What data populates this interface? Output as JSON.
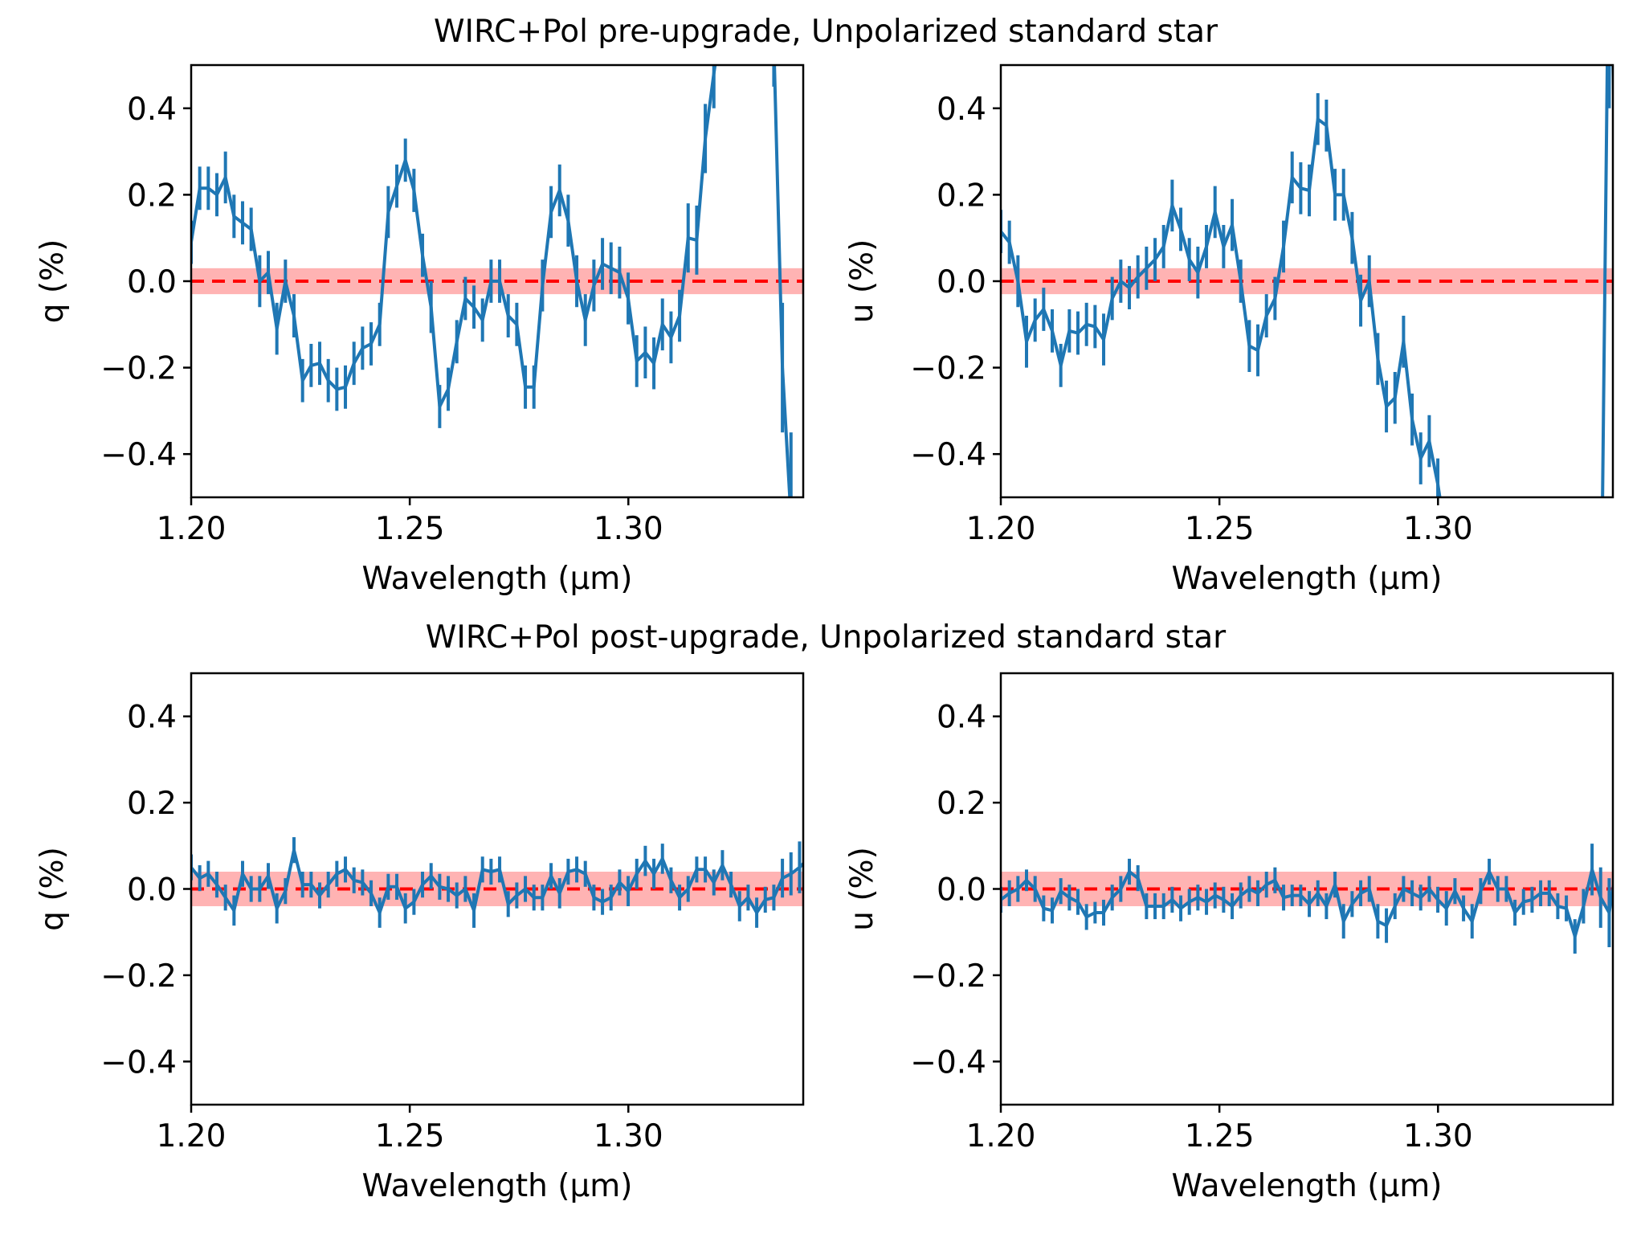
{
  "chart_data": [
    {
      "type": "line",
      "panel": "top-left",
      "group_title": "WIRC+Pol pre-upgrade, Unpolarized standard star",
      "xlabel": "Wavelength (μm)",
      "ylabel": "q (%)",
      "xlim": [
        1.2,
        1.34
      ],
      "ylim": [
        -0.5,
        0.5
      ],
      "xticks": [
        "1.20",
        "1.25",
        "1.30"
      ],
      "xtick_values": [
        1.2,
        1.25,
        1.3
      ],
      "yticks": [
        "−0.4",
        "−0.2",
        "0.0",
        "0.2",
        "0.4"
      ],
      "ytick_values": [
        -0.4,
        -0.2,
        0.0,
        0.2,
        0.4
      ],
      "reference_line": 0.0,
      "reference_band": 0.03,
      "x_start": 1.2,
      "x_step": 0.00196,
      "series": [
        {
          "name": "q",
          "color": "#1f77b4",
          "values": [
            0.09,
            0.215,
            0.215,
            0.2,
            0.24,
            0.15,
            0.135,
            0.12,
            0.0,
            0.02,
            -0.11,
            0.0,
            -0.08,
            -0.23,
            -0.195,
            -0.19,
            -0.23,
            -0.25,
            -0.245,
            -0.19,
            -0.155,
            -0.145,
            -0.1,
            0.16,
            0.22,
            0.28,
            0.21,
            0.06,
            -0.06,
            -0.29,
            -0.25,
            -0.14,
            -0.04,
            -0.06,
            -0.09,
            0.0,
            0.0,
            -0.08,
            -0.1,
            -0.245,
            -0.245,
            -0.01,
            0.16,
            0.21,
            0.14,
            0.0,
            -0.09,
            -0.01,
            0.04,
            0.03,
            0.02,
            -0.04,
            -0.185,
            -0.165,
            -0.19,
            -0.1,
            -0.13,
            -0.08,
            0.1,
            0.095,
            0.33,
            0.48,
            0.62,
            0.8,
            0.9,
            0.95,
            0.85,
            0.7,
            0.55,
            -0.2,
            -0.55,
            -0.75
          ],
          "errors": [
            0.05,
            0.05,
            0.05,
            0.05,
            0.06,
            0.05,
            0.05,
            0.05,
            0.06,
            0.05,
            0.06,
            0.05,
            0.05,
            0.05,
            0.05,
            0.05,
            0.05,
            0.05,
            0.05,
            0.05,
            0.05,
            0.05,
            0.05,
            0.06,
            0.05,
            0.05,
            0.05,
            0.05,
            0.06,
            0.05,
            0.05,
            0.05,
            0.05,
            0.05,
            0.05,
            0.05,
            0.05,
            0.05,
            0.05,
            0.05,
            0.05,
            0.06,
            0.06,
            0.06,
            0.06,
            0.06,
            0.06,
            0.06,
            0.06,
            0.06,
            0.06,
            0.06,
            0.06,
            0.06,
            0.06,
            0.06,
            0.06,
            0.06,
            0.08,
            0.08,
            0.08,
            0.08,
            0.1,
            0.1,
            0.1,
            0.1,
            0.1,
            0.1,
            0.1,
            0.15,
            0.2,
            0.2
          ]
        }
      ]
    },
    {
      "type": "line",
      "panel": "top-right",
      "group_title": "WIRC+Pol pre-upgrade, Unpolarized standard star",
      "xlabel": "Wavelength (μm)",
      "ylabel": "u (%)",
      "xlim": [
        1.2,
        1.34
      ],
      "ylim": [
        -0.5,
        0.5
      ],
      "xticks": [
        "1.20",
        "1.25",
        "1.30"
      ],
      "xtick_values": [
        1.2,
        1.25,
        1.3
      ],
      "yticks": [
        "−0.4",
        "−0.2",
        "0.0",
        "0.2",
        "0.4"
      ],
      "ytick_values": [
        -0.4,
        -0.2,
        0.0,
        0.2,
        0.4
      ],
      "reference_line": 0.0,
      "reference_band": 0.03,
      "x_start": 1.2,
      "x_step": 0.00196,
      "series": [
        {
          "name": "u",
          "color": "#1f77b4",
          "values": [
            0.115,
            0.09,
            0.0,
            -0.14,
            -0.09,
            -0.065,
            -0.115,
            -0.195,
            -0.115,
            -0.12,
            -0.1,
            -0.105,
            -0.135,
            -0.04,
            0.0,
            -0.015,
            0.01,
            0.03,
            0.05,
            0.08,
            0.175,
            0.12,
            0.05,
            0.02,
            0.08,
            0.16,
            0.08,
            0.13,
            0.0,
            -0.15,
            -0.16,
            -0.08,
            -0.04,
            0.08,
            0.24,
            0.215,
            0.21,
            0.375,
            0.36,
            0.2,
            0.2,
            0.1,
            -0.045,
            0.0,
            -0.18,
            -0.29,
            -0.27,
            -0.14,
            -0.32,
            -0.41,
            -0.37,
            -0.47,
            -0.6,
            -0.7,
            -0.75,
            -0.8,
            -0.8,
            -0.8,
            -0.8,
            -0.8,
            -0.8,
            -0.8,
            -0.8,
            -0.8,
            -0.8,
            -0.8,
            -0.8,
            -0.8,
            -0.8,
            -0.9,
            -0.9,
            0.9,
            0.0
          ],
          "errors": [
            0.05,
            0.05,
            0.06,
            0.06,
            0.05,
            0.05,
            0.05,
            0.05,
            0.05,
            0.05,
            0.05,
            0.05,
            0.06,
            0.05,
            0.05,
            0.05,
            0.05,
            0.05,
            0.05,
            0.05,
            0.06,
            0.05,
            0.05,
            0.06,
            0.05,
            0.06,
            0.05,
            0.06,
            0.05,
            0.06,
            0.06,
            0.05,
            0.05,
            0.06,
            0.06,
            0.06,
            0.06,
            0.06,
            0.06,
            0.06,
            0.06,
            0.06,
            0.06,
            0.06,
            0.06,
            0.06,
            0.06,
            0.06,
            0.06,
            0.06,
            0.06,
            0.06,
            0.06,
            0.06,
            0.06,
            0.06,
            0.06,
            0.06,
            0.06,
            0.06,
            0.06,
            0.06,
            0.06,
            0.06,
            0.06,
            0.06,
            0.06,
            0.06,
            0.06,
            0.3,
            0.3,
            0.5,
            0.5
          ],
          "hidden_indices": [
            53,
            54,
            55,
            56,
            57,
            58,
            59,
            60,
            61,
            62,
            63,
            64,
            65,
            66,
            67,
            68
          ]
        }
      ]
    },
    {
      "type": "line",
      "panel": "bottom-left",
      "group_title": "WIRC+Pol post-upgrade, Unpolarized standard star",
      "xlabel": "Wavelength (μm)",
      "ylabel": "q (%)",
      "xlim": [
        1.2,
        1.34
      ],
      "ylim": [
        -0.5,
        0.5
      ],
      "xticks": [
        "1.20",
        "1.25",
        "1.30"
      ],
      "xtick_values": [
        1.2,
        1.25,
        1.3
      ],
      "yticks": [
        "−0.4",
        "−0.2",
        "0.0",
        "0.2",
        "0.4"
      ],
      "ytick_values": [
        -0.4,
        -0.2,
        0.0,
        0.2,
        0.4
      ],
      "reference_line": 0.0,
      "reference_band": 0.04,
      "x_start": 1.2,
      "x_step": 0.00196,
      "series": [
        {
          "name": "q",
          "color": "#1f77b4",
          "values": [
            0.05,
            0.025,
            0.035,
            0.01,
            -0.02,
            -0.05,
            0.035,
            0.0,
            0.0,
            0.03,
            -0.045,
            -0.005,
            0.09,
            0.01,
            0.01,
            -0.015,
            0.01,
            0.035,
            0.045,
            0.02,
            0.015,
            -0.01,
            -0.055,
            0.005,
            0.005,
            -0.045,
            -0.03,
            0.01,
            0.03,
            0.005,
            0.0,
            -0.015,
            0.0,
            -0.05,
            0.045,
            0.04,
            0.045,
            -0.035,
            -0.015,
            0.0,
            -0.02,
            -0.02,
            0.03,
            -0.01,
            0.04,
            0.045,
            0.035,
            -0.02,
            -0.03,
            -0.02,
            0.015,
            -0.005,
            0.035,
            0.065,
            0.035,
            0.07,
            0.02,
            -0.02,
            0.0,
            0.045,
            0.045,
            0.015,
            0.055,
            0.01,
            -0.04,
            -0.02,
            -0.055,
            -0.025,
            -0.02,
            0.025,
            0.035,
            0.05,
            0.07,
            -0.03
          ],
          "errors": [
            0.03,
            0.03,
            0.03,
            0.03,
            0.03,
            0.035,
            0.03,
            0.03,
            0.03,
            0.03,
            0.035,
            0.03,
            0.03,
            0.03,
            0.03,
            0.03,
            0.03,
            0.03,
            0.03,
            0.03,
            0.03,
            0.03,
            0.035,
            0.03,
            0.03,
            0.035,
            0.03,
            0.03,
            0.03,
            0.03,
            0.03,
            0.03,
            0.03,
            0.04,
            0.03,
            0.03,
            0.03,
            0.03,
            0.03,
            0.03,
            0.03,
            0.03,
            0.03,
            0.035,
            0.03,
            0.03,
            0.03,
            0.03,
            0.03,
            0.03,
            0.03,
            0.035,
            0.035,
            0.035,
            0.035,
            0.035,
            0.03,
            0.03,
            0.03,
            0.03,
            0.03,
            0.03,
            0.035,
            0.03,
            0.035,
            0.03,
            0.035,
            0.03,
            0.03,
            0.045,
            0.05,
            0.06,
            0.07,
            0.07
          ]
        }
      ]
    },
    {
      "type": "line",
      "panel": "bottom-right",
      "group_title": "WIRC+Pol post-upgrade, Unpolarized standard star",
      "xlabel": "Wavelength (μm)",
      "ylabel": "u (%)",
      "xlim": [
        1.2,
        1.34
      ],
      "ylim": [
        -0.5,
        0.5
      ],
      "xticks": [
        "1.20",
        "1.25",
        "1.30"
      ],
      "xtick_values": [
        1.2,
        1.25,
        1.3
      ],
      "yticks": [
        "−0.4",
        "−0.2",
        "0.0",
        "0.2",
        "0.4"
      ],
      "ytick_values": [
        -0.4,
        -0.2,
        0.0,
        0.2,
        0.4
      ],
      "reference_line": 0.0,
      "reference_band": 0.04,
      "x_start": 1.2,
      "x_step": 0.00196,
      "series": [
        {
          "name": "u",
          "color": "#1f77b4",
          "values": [
            -0.025,
            -0.01,
            0.0,
            0.02,
            0.0,
            -0.045,
            -0.05,
            -0.005,
            -0.02,
            -0.03,
            -0.065,
            -0.055,
            -0.055,
            -0.02,
            0.0,
            0.04,
            0.025,
            -0.04,
            -0.04,
            -0.04,
            -0.025,
            -0.045,
            -0.03,
            -0.02,
            -0.03,
            -0.015,
            -0.025,
            -0.04,
            -0.015,
            0.0,
            -0.01,
            0.01,
            0.02,
            -0.02,
            -0.015,
            -0.015,
            -0.035,
            -0.01,
            -0.04,
            0.01,
            -0.075,
            -0.035,
            -0.01,
            0.0,
            -0.075,
            -0.085,
            -0.04,
            0.0,
            -0.01,
            -0.02,
            0.0,
            -0.025,
            -0.045,
            -0.005,
            -0.045,
            -0.075,
            -0.005,
            0.04,
            0.0,
            0.0,
            -0.055,
            -0.03,
            -0.025,
            -0.01,
            -0.01,
            -0.04,
            -0.045,
            -0.11,
            -0.04,
            0.045,
            -0.02,
            -0.055,
            0.07,
            0.06
          ],
          "errors": [
            0.03,
            0.03,
            0.03,
            0.025,
            0.03,
            0.03,
            0.03,
            0.03,
            0.03,
            0.03,
            0.03,
            0.025,
            0.03,
            0.03,
            0.03,
            0.03,
            0.03,
            0.03,
            0.03,
            0.03,
            0.03,
            0.03,
            0.03,
            0.03,
            0.03,
            0.03,
            0.03,
            0.03,
            0.03,
            0.03,
            0.03,
            0.03,
            0.03,
            0.03,
            0.025,
            0.025,
            0.03,
            0.03,
            0.03,
            0.03,
            0.04,
            0.03,
            0.03,
            0.03,
            0.04,
            0.04,
            0.03,
            0.03,
            0.03,
            0.03,
            0.03,
            0.03,
            0.04,
            0.03,
            0.03,
            0.04,
            0.03,
            0.03,
            0.03,
            0.03,
            0.03,
            0.03,
            0.03,
            0.03,
            0.03,
            0.03,
            0.03,
            0.04,
            0.04,
            0.06,
            0.07,
            0.08,
            0.09,
            0.09
          ]
        }
      ]
    }
  ],
  "titles": {
    "top": "WIRC+Pol pre-upgrade, Unpolarized standard star",
    "bottom": "WIRC+Pol post-upgrade, Unpolarized standard star"
  },
  "colors": {
    "series": "#1f77b4",
    "reference_line": "#ff0000",
    "reference_band": "#ffb3b3",
    "axes": "#000000"
  }
}
